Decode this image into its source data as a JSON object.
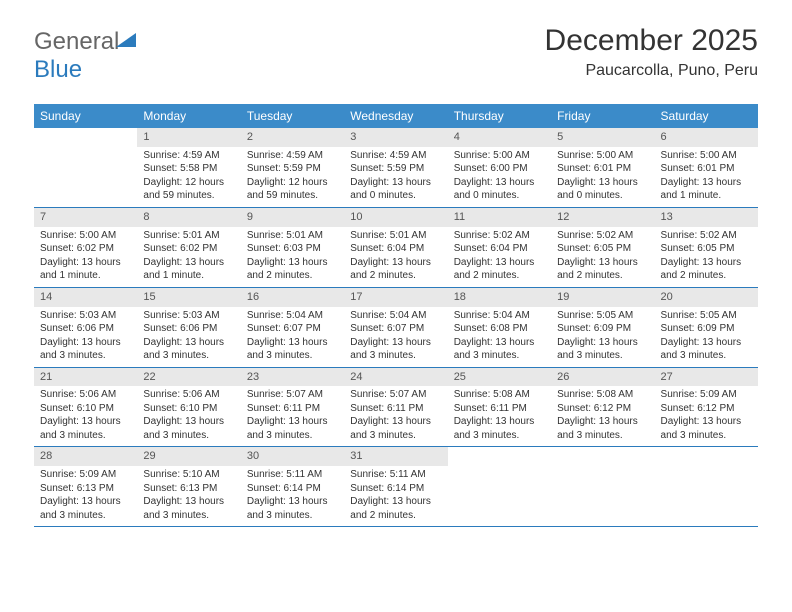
{
  "logo": {
    "text1": "General",
    "text2": "Blue"
  },
  "title": {
    "month": "December 2025",
    "location": "Paucarcolla, Puno, Peru"
  },
  "colors": {
    "header_bg": "#3b8bc9",
    "accent": "#2b7bbd",
    "daynum_bg": "#e8e8e8"
  },
  "day_headers": [
    "Sunday",
    "Monday",
    "Tuesday",
    "Wednesday",
    "Thursday",
    "Friday",
    "Saturday"
  ],
  "weeks": [
    [
      {
        "n": "",
        "sr": "",
        "ss": "",
        "dl": ""
      },
      {
        "n": "1",
        "sr": "Sunrise: 4:59 AM",
        "ss": "Sunset: 5:58 PM",
        "dl": "Daylight: 12 hours and 59 minutes."
      },
      {
        "n": "2",
        "sr": "Sunrise: 4:59 AM",
        "ss": "Sunset: 5:59 PM",
        "dl": "Daylight: 12 hours and 59 minutes."
      },
      {
        "n": "3",
        "sr": "Sunrise: 4:59 AM",
        "ss": "Sunset: 5:59 PM",
        "dl": "Daylight: 13 hours and 0 minutes."
      },
      {
        "n": "4",
        "sr": "Sunrise: 5:00 AM",
        "ss": "Sunset: 6:00 PM",
        "dl": "Daylight: 13 hours and 0 minutes."
      },
      {
        "n": "5",
        "sr": "Sunrise: 5:00 AM",
        "ss": "Sunset: 6:01 PM",
        "dl": "Daylight: 13 hours and 0 minutes."
      },
      {
        "n": "6",
        "sr": "Sunrise: 5:00 AM",
        "ss": "Sunset: 6:01 PM",
        "dl": "Daylight: 13 hours and 1 minute."
      }
    ],
    [
      {
        "n": "7",
        "sr": "Sunrise: 5:00 AM",
        "ss": "Sunset: 6:02 PM",
        "dl": "Daylight: 13 hours and 1 minute."
      },
      {
        "n": "8",
        "sr": "Sunrise: 5:01 AM",
        "ss": "Sunset: 6:02 PM",
        "dl": "Daylight: 13 hours and 1 minute."
      },
      {
        "n": "9",
        "sr": "Sunrise: 5:01 AM",
        "ss": "Sunset: 6:03 PM",
        "dl": "Daylight: 13 hours and 2 minutes."
      },
      {
        "n": "10",
        "sr": "Sunrise: 5:01 AM",
        "ss": "Sunset: 6:04 PM",
        "dl": "Daylight: 13 hours and 2 minutes."
      },
      {
        "n": "11",
        "sr": "Sunrise: 5:02 AM",
        "ss": "Sunset: 6:04 PM",
        "dl": "Daylight: 13 hours and 2 minutes."
      },
      {
        "n": "12",
        "sr": "Sunrise: 5:02 AM",
        "ss": "Sunset: 6:05 PM",
        "dl": "Daylight: 13 hours and 2 minutes."
      },
      {
        "n": "13",
        "sr": "Sunrise: 5:02 AM",
        "ss": "Sunset: 6:05 PM",
        "dl": "Daylight: 13 hours and 2 minutes."
      }
    ],
    [
      {
        "n": "14",
        "sr": "Sunrise: 5:03 AM",
        "ss": "Sunset: 6:06 PM",
        "dl": "Daylight: 13 hours and 3 minutes."
      },
      {
        "n": "15",
        "sr": "Sunrise: 5:03 AM",
        "ss": "Sunset: 6:06 PM",
        "dl": "Daylight: 13 hours and 3 minutes."
      },
      {
        "n": "16",
        "sr": "Sunrise: 5:04 AM",
        "ss": "Sunset: 6:07 PM",
        "dl": "Daylight: 13 hours and 3 minutes."
      },
      {
        "n": "17",
        "sr": "Sunrise: 5:04 AM",
        "ss": "Sunset: 6:07 PM",
        "dl": "Daylight: 13 hours and 3 minutes."
      },
      {
        "n": "18",
        "sr": "Sunrise: 5:04 AM",
        "ss": "Sunset: 6:08 PM",
        "dl": "Daylight: 13 hours and 3 minutes."
      },
      {
        "n": "19",
        "sr": "Sunrise: 5:05 AM",
        "ss": "Sunset: 6:09 PM",
        "dl": "Daylight: 13 hours and 3 minutes."
      },
      {
        "n": "20",
        "sr": "Sunrise: 5:05 AM",
        "ss": "Sunset: 6:09 PM",
        "dl": "Daylight: 13 hours and 3 minutes."
      }
    ],
    [
      {
        "n": "21",
        "sr": "Sunrise: 5:06 AM",
        "ss": "Sunset: 6:10 PM",
        "dl": "Daylight: 13 hours and 3 minutes."
      },
      {
        "n": "22",
        "sr": "Sunrise: 5:06 AM",
        "ss": "Sunset: 6:10 PM",
        "dl": "Daylight: 13 hours and 3 minutes."
      },
      {
        "n": "23",
        "sr": "Sunrise: 5:07 AM",
        "ss": "Sunset: 6:11 PM",
        "dl": "Daylight: 13 hours and 3 minutes."
      },
      {
        "n": "24",
        "sr": "Sunrise: 5:07 AM",
        "ss": "Sunset: 6:11 PM",
        "dl": "Daylight: 13 hours and 3 minutes."
      },
      {
        "n": "25",
        "sr": "Sunrise: 5:08 AM",
        "ss": "Sunset: 6:11 PM",
        "dl": "Daylight: 13 hours and 3 minutes."
      },
      {
        "n": "26",
        "sr": "Sunrise: 5:08 AM",
        "ss": "Sunset: 6:12 PM",
        "dl": "Daylight: 13 hours and 3 minutes."
      },
      {
        "n": "27",
        "sr": "Sunrise: 5:09 AM",
        "ss": "Sunset: 6:12 PM",
        "dl": "Daylight: 13 hours and 3 minutes."
      }
    ],
    [
      {
        "n": "28",
        "sr": "Sunrise: 5:09 AM",
        "ss": "Sunset: 6:13 PM",
        "dl": "Daylight: 13 hours and 3 minutes."
      },
      {
        "n": "29",
        "sr": "Sunrise: 5:10 AM",
        "ss": "Sunset: 6:13 PM",
        "dl": "Daylight: 13 hours and 3 minutes."
      },
      {
        "n": "30",
        "sr": "Sunrise: 5:11 AM",
        "ss": "Sunset: 6:14 PM",
        "dl": "Daylight: 13 hours and 3 minutes."
      },
      {
        "n": "31",
        "sr": "Sunrise: 5:11 AM",
        "ss": "Sunset: 6:14 PM",
        "dl": "Daylight: 13 hours and 2 minutes."
      },
      {
        "n": "",
        "sr": "",
        "ss": "",
        "dl": ""
      },
      {
        "n": "",
        "sr": "",
        "ss": "",
        "dl": ""
      },
      {
        "n": "",
        "sr": "",
        "ss": "",
        "dl": ""
      }
    ]
  ]
}
